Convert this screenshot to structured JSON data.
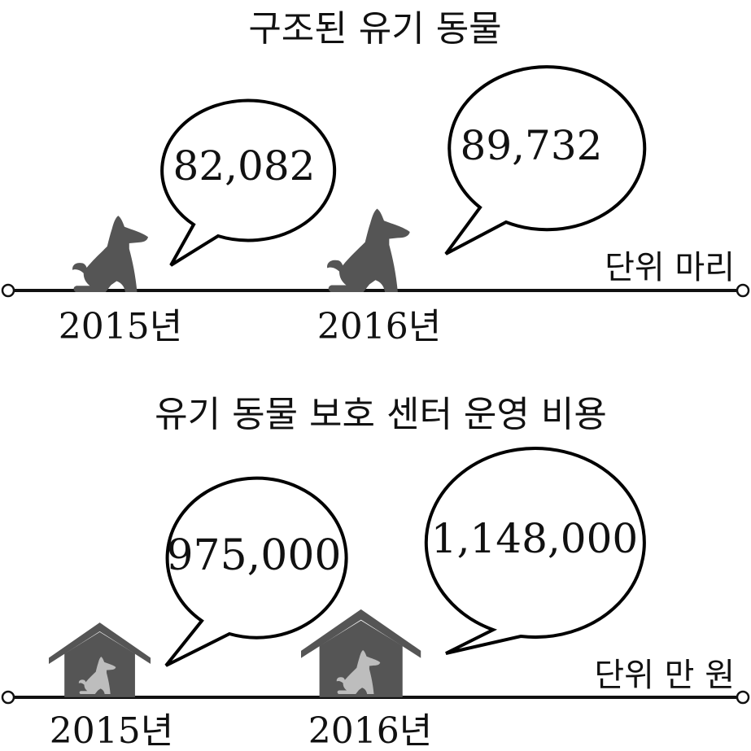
{
  "chart_data": [
    {
      "type": "pictograph",
      "title": "구조된 유기 동물",
      "unit": "단위 마리",
      "categories": [
        "2015년",
        "2016년"
      ],
      "values": [
        82082,
        89732
      ],
      "value_labels": [
        "82,082",
        "89,732"
      ],
      "icon": "dog-icon"
    },
    {
      "type": "pictograph",
      "title": "유기 동물 보호 센터 운영 비용",
      "unit": "단위 만 원",
      "categories": [
        "2015년",
        "2016년"
      ],
      "values": [
        975000,
        1148000
      ],
      "value_labels": [
        "975,000",
        "1,148,000"
      ],
      "icon": "doghouse-icon"
    }
  ],
  "colors": {
    "icon_fill": "#555555",
    "dog_in_house": "#bdbdbd",
    "line": "#111111",
    "bubble_stroke": "#000000"
  }
}
